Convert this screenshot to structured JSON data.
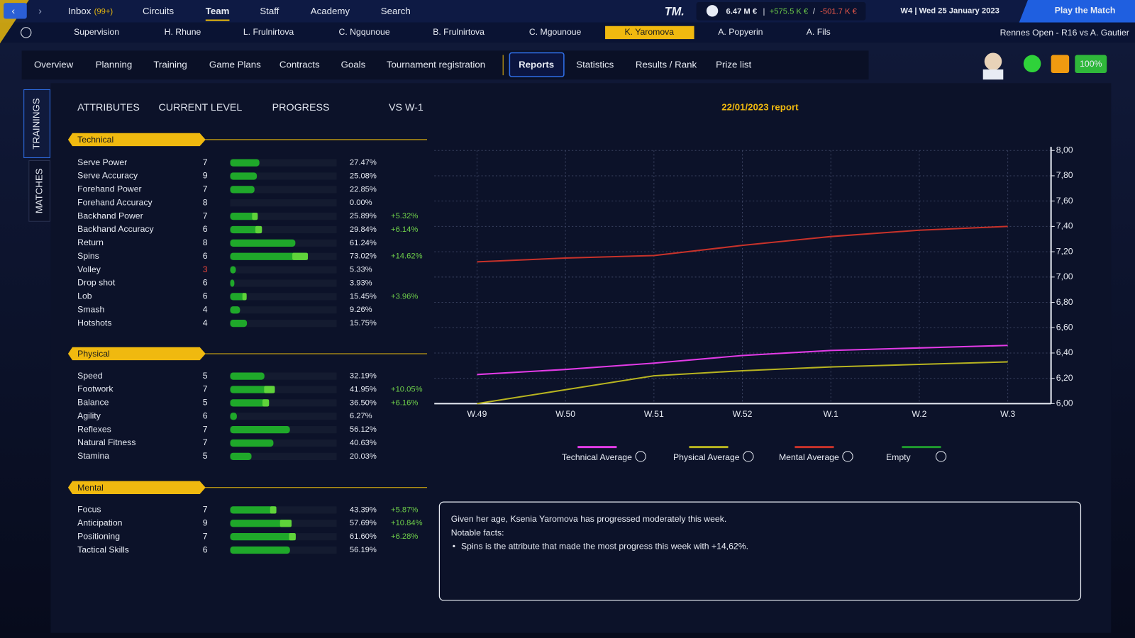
{
  "top_nav": {
    "items": [
      "Inbox",
      "Circuits",
      "Team",
      "Staff",
      "Academy",
      "Search"
    ],
    "inbox_badge": "(99+)"
  },
  "logo": "TM.",
  "finance": {
    "balance": "6.47 M €",
    "separator": "|",
    "income": "+575.5 K €",
    "slash": "/",
    "expense": "-501.7 K €"
  },
  "date": "W4 | Wed 25 January 2023",
  "play_button": "Play the Match",
  "players": [
    "Supervision",
    "H. Rhune",
    "L. Frulnirtova",
    "C. Ngqunoue",
    "B. Frulnirtova",
    "C. Mgounoue",
    "K. Yaromova",
    "A. Popyerin",
    "A. Fils"
  ],
  "next_match": "Rennes Open - R16 vs A. Gautier",
  "tabs": [
    "Overview",
    "Planning",
    "Training",
    "Game Plans",
    "Contracts",
    "Goals",
    "Tournament registration",
    "Reports",
    "Statistics",
    "Results / Rank",
    "Prize list"
  ],
  "condition": "100%",
  "side_tabs": [
    "TRAININGS",
    "MATCHES"
  ],
  "columns": [
    "ATTRIBUTES",
    "CURRENT LEVEL",
    "PROGRESS",
    "VS W-1"
  ],
  "sections": [
    {
      "title": "Technical",
      "attributes": [
        {
          "name": "Serve Power",
          "level": 7,
          "progress": 27.47,
          "progress_label": "27.47%"
        },
        {
          "name": "Serve Accuracy",
          "level": 9,
          "progress": 25.08,
          "progress_label": "25.08%"
        },
        {
          "name": "Forehand Power",
          "level": 7,
          "progress": 22.85,
          "progress_label": "22.85%"
        },
        {
          "name": "Forehand Accuracy",
          "level": 8,
          "progress": 0,
          "progress_label": "0.00%"
        },
        {
          "name": "Backhand Power",
          "level": 7,
          "progress": 25.89,
          "progress_label": "25.89%",
          "change": 5.32,
          "change_label": "+5.32%"
        },
        {
          "name": "Backhand Accuracy",
          "level": 6,
          "progress": 29.84,
          "progress_label": "29.84%",
          "change": 6.14,
          "change_label": "+6.14%"
        },
        {
          "name": "Return",
          "level": 8,
          "progress": 61.24,
          "progress_label": "61.24%"
        },
        {
          "name": "Spins",
          "level": 6,
          "progress": 73.02,
          "progress_label": "73.02%",
          "change": 14.62,
          "change_label": "+14.62%"
        },
        {
          "name": "Volley",
          "level": 3,
          "level_color": "#e8463c",
          "progress": 5.33,
          "progress_label": "5.33%"
        },
        {
          "name": "Drop shot",
          "level": 6,
          "progress": 3.93,
          "progress_label": "3.93%"
        },
        {
          "name": "Lob",
          "level": 6,
          "progress": 15.45,
          "progress_label": "15.45%",
          "change": 3.96,
          "change_label": "+3.96%"
        },
        {
          "name": "Smash",
          "level": 4,
          "progress": 9.26,
          "progress_label": "9.26%"
        },
        {
          "name": "Hotshots",
          "level": 4,
          "progress": 15.75,
          "progress_label": "15.75%"
        }
      ]
    },
    {
      "title": "Physical",
      "attributes": [
        {
          "name": "Speed",
          "level": 5,
          "progress": 32.19,
          "progress_label": "32.19%"
        },
        {
          "name": "Footwork",
          "level": 7,
          "progress": 41.95,
          "progress_label": "41.95%",
          "change": 10.05,
          "change_label": "+10.05%"
        },
        {
          "name": "Balance",
          "level": 5,
          "progress": 36.5,
          "progress_label": "36.50%",
          "change": 6.16,
          "change_label": "+6.16%"
        },
        {
          "name": "Agility",
          "level": 6,
          "progress": 6.27,
          "progress_label": "6.27%"
        },
        {
          "name": "Reflexes",
          "level": 7,
          "progress": 56.12,
          "progress_label": "56.12%"
        },
        {
          "name": "Natural Fitness",
          "level": 7,
          "progress": 40.63,
          "progress_label": "40.63%"
        },
        {
          "name": "Stamina",
          "level": 5,
          "progress": 20.03,
          "progress_label": "20.03%"
        }
      ]
    },
    {
      "title": "Mental",
      "attributes": [
        {
          "name": "Focus",
          "level": 7,
          "progress": 43.39,
          "progress_label": "43.39%",
          "change": 5.87,
          "change_label": "+5.87%"
        },
        {
          "name": "Anticipation",
          "level": 9,
          "progress": 57.69,
          "progress_label": "57.69%",
          "change": 10.84,
          "change_label": "+10.84%"
        },
        {
          "name": "Positioning",
          "level": 7,
          "progress": 61.6,
          "progress_label": "61.60%",
          "change": 6.28,
          "change_label": "+6.28%"
        },
        {
          "name": "Tactical Skills",
          "level": 6,
          "progress": 56.19,
          "progress_label": "56.19%"
        }
      ]
    }
  ],
  "chart_data": {
    "type": "line",
    "title": "22/01/2023 report",
    "categories": [
      "W.49",
      "W.50",
      "W.51",
      "W.52",
      "W.1",
      "W.2",
      "W.3"
    ],
    "series": [
      {
        "name": "Technical Average",
        "color": "#e23be6",
        "values": [
          6.23,
          6.27,
          6.32,
          6.38,
          6.42,
          6.44,
          6.46
        ]
      },
      {
        "name": "Physical Average",
        "color": "#b8b420",
        "values": [
          6.0,
          6.11,
          6.22,
          6.26,
          6.29,
          6.31,
          6.33
        ]
      },
      {
        "name": "Mental Average",
        "color": "#c8322a",
        "values": [
          7.12,
          7.15,
          7.17,
          7.25,
          7.32,
          7.37,
          7.4
        ]
      },
      {
        "name": "Empty",
        "color": "#1f9a2e",
        "values": [
          null,
          null,
          null,
          null,
          null,
          null,
          null
        ]
      }
    ],
    "ylim": [
      6,
      8
    ],
    "yticks": [
      {
        "value": 6,
        "label": "6,00"
      },
      {
        "value": 6.2,
        "label": "6,20"
      },
      {
        "value": 6.4,
        "label": "6,40"
      },
      {
        "value": 6.6,
        "label": "6,60"
      },
      {
        "value": 6.8,
        "label": "6,80"
      },
      {
        "value": 7,
        "label": "7,00"
      },
      {
        "value": 7.2,
        "label": "7,20"
      },
      {
        "value": 7.4,
        "label": "7,40"
      },
      {
        "value": 7.6,
        "label": "7,60"
      },
      {
        "value": 7.8,
        "label": "7,80"
      },
      {
        "value": 8,
        "label": "8,00"
      }
    ],
    "grid": true,
    "legend": "bottom"
  },
  "report": {
    "text": "Given her age, Ksenia Yaromova has progressed moderately this week.",
    "heading": "Notable facts:",
    "facts": [
      "Spins is the attribute that made the most progress this week with +14,62%."
    ]
  }
}
